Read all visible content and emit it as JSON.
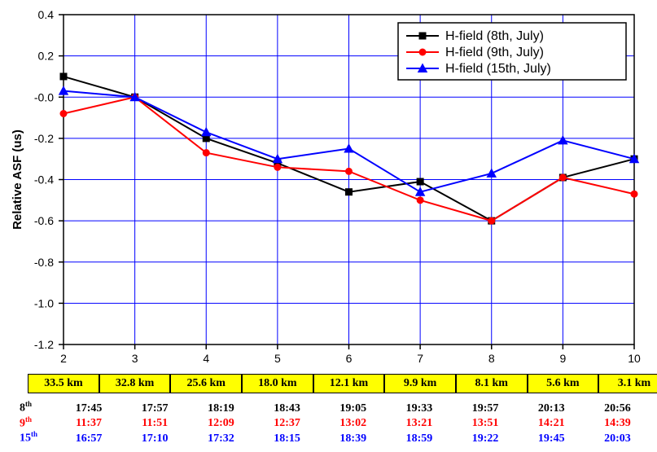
{
  "chart": {
    "type": "line",
    "ylabel": "Relative ASF (us)",
    "label_fontsize": 15,
    "tick_fontsize": 14,
    "background_color": "#ffffff",
    "grid_color": "#0000ff",
    "axis_color": "#000000",
    "xlim": [
      2,
      10
    ],
    "xtick_step": 1,
    "ylim": [
      -1.2,
      0.4
    ],
    "ytick_step": 0.2,
    "x_values": [
      2,
      3,
      4,
      5,
      6,
      7,
      8,
      9,
      10
    ],
    "series": [
      {
        "name": "H-field (8th, July)",
        "color": "#000000",
        "marker": "square",
        "marker_size": 8,
        "line_width": 2,
        "values": [
          0.1,
          0.0,
          -0.2,
          -0.32,
          -0.46,
          -0.41,
          -0.6,
          -0.39,
          -0.3
        ]
      },
      {
        "name": "H-field (9th, July)",
        "color": "#ff0000",
        "marker": "circle",
        "marker_size": 8,
        "line_width": 2,
        "values": [
          -0.08,
          0.0,
          -0.27,
          -0.34,
          -0.36,
          -0.5,
          -0.6,
          -0.39,
          -0.47
        ]
      },
      {
        "name": "H-field (15th, July)",
        "color": "#0000ff",
        "marker": "triangle",
        "marker_size": 9,
        "line_width": 2,
        "values": [
          0.03,
          0.0,
          -0.17,
          -0.3,
          -0.25,
          -0.46,
          -0.37,
          -0.21,
          -0.3
        ]
      }
    ],
    "legend_position": "top-right"
  },
  "distances": {
    "bg_color": "#ffff00",
    "border_color": "#000000",
    "text_color": "#000000",
    "fontsize": 14,
    "values": [
      "33.5 km",
      "32.8 km",
      "25.6 km",
      "18.0 km",
      "12.1 km",
      "9.9 km",
      "8.1 km",
      "5.6 km",
      "3.1 km"
    ]
  },
  "time_table": {
    "fontsize": 14,
    "rows": [
      {
        "label": "8",
        "sup": "th",
        "color": "#000000",
        "times": [
          "17:45",
          "17:57",
          "18:19",
          "18:43",
          "19:05",
          "19:33",
          "19:57",
          "20:13",
          "20:56"
        ]
      },
      {
        "label": "9",
        "sup": "th",
        "color": "#ff0000",
        "times": [
          "11:37",
          "11:51",
          "12:09",
          "12:37",
          "13:02",
          "13:21",
          "13:51",
          "14:21",
          "14:39"
        ]
      },
      {
        "label": "15",
        "sup": "th",
        "color": "#0000ff",
        "times": [
          "16:57",
          "17:10",
          "17:32",
          "18:15",
          "18:39",
          "18:59",
          "19:22",
          "19:45",
          "20:03"
        ]
      }
    ]
  }
}
